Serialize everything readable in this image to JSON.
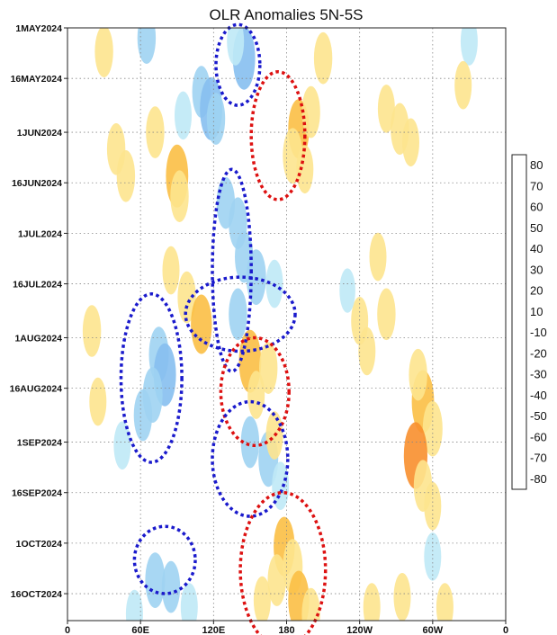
{
  "chart_data": {
    "type": "heatmap",
    "title": "OLR Anomalies 5N-5S",
    "xlabel": "",
    "ylabel": "",
    "x_ticks": [
      {
        "lon": 0,
        "label": "0"
      },
      {
        "lon": 60,
        "label": "60E"
      },
      {
        "lon": 120,
        "label": "120E"
      },
      {
        "lon": 180,
        "label": "180"
      },
      {
        "lon": 240,
        "label": "120W"
      },
      {
        "lon": 300,
        "label": "60W"
      },
      {
        "lon": 360,
        "label": "0"
      }
    ],
    "xlim": [
      0,
      360
    ],
    "time_range": [
      "2024-05-01",
      "2024-10-24"
    ],
    "y_ticks": [
      {
        "date": "2024-05-01",
        "label": "1MAY2024"
      },
      {
        "date": "2024-05-16",
        "label": "16MAY2024"
      },
      {
        "date": "2024-06-01",
        "label": "1JUN2024"
      },
      {
        "date": "2024-06-16",
        "label": "16JUN2024"
      },
      {
        "date": "2024-07-01",
        "label": "1JUL2024"
      },
      {
        "date": "2024-07-16",
        "label": "16JUL2024"
      },
      {
        "date": "2024-08-01",
        "label": "1AUG2024"
      },
      {
        "date": "2024-08-16",
        "label": "16AUG2024"
      },
      {
        "date": "2024-09-01",
        "label": "1SEP2024"
      },
      {
        "date": "2024-09-16",
        "label": "16SEP2024"
      },
      {
        "date": "2024-10-01",
        "label": "1OCT2024"
      },
      {
        "date": "2024-10-16",
        "label": "16OCT2024"
      }
    ],
    "grid": true,
    "colorbar": {
      "levels": [
        {
          "label": "80",
          "color": "#a50f15"
        },
        {
          "label": "70",
          "color": "#c8161d"
        },
        {
          "label": "60",
          "color": "#e3261d"
        },
        {
          "label": "50",
          "color": "#f4592a"
        },
        {
          "label": "40",
          "color": "#f88f2e"
        },
        {
          "label": "30",
          "color": "#fbbf45"
        },
        {
          "label": "20",
          "color": "#fde48e"
        },
        {
          "label": "10",
          "color": "#ffffff"
        },
        {
          "label": "-10",
          "color": "#bfe9f6"
        },
        {
          "label": "-20",
          "color": "#9fd3f2"
        },
        {
          "label": "-30",
          "color": "#86bff0"
        },
        {
          "label": "-40",
          "color": "#69a6ea"
        },
        {
          "label": "-50",
          "color": "#4f8ee6"
        },
        {
          "label": "-60",
          "color": "#3b78df"
        },
        {
          "label": "-70",
          "color": "#2b63d7"
        },
        {
          "label": "-80",
          "color": "#1c4fcf"
        }
      ]
    },
    "anomaly_blobs": [
      {
        "lon": 145,
        "date": "2024-05-10",
        "value": -35
      },
      {
        "lon": 138,
        "date": "2024-05-05",
        "value": -15
      },
      {
        "lon": 65,
        "date": "2024-05-04",
        "value": -20
      },
      {
        "lon": 30,
        "date": "2024-05-08",
        "value": 20
      },
      {
        "lon": 110,
        "date": "2024-05-20",
        "value": -20
      },
      {
        "lon": 118,
        "date": "2024-05-25",
        "value": -35
      },
      {
        "lon": 122,
        "date": "2024-05-28",
        "value": -20
      },
      {
        "lon": 95,
        "date": "2024-05-27",
        "value": -15
      },
      {
        "lon": 210,
        "date": "2024-05-10",
        "value": 20
      },
      {
        "lon": 190,
        "date": "2024-05-31",
        "value": 30
      },
      {
        "lon": 200,
        "date": "2024-05-26",
        "value": 20
      },
      {
        "lon": 185,
        "date": "2024-06-08",
        "value": 25
      },
      {
        "lon": 195,
        "date": "2024-06-12",
        "value": 15
      },
      {
        "lon": 262,
        "date": "2024-05-25",
        "value": 15
      },
      {
        "lon": 273,
        "date": "2024-05-31",
        "value": 20
      },
      {
        "lon": 282,
        "date": "2024-06-04",
        "value": 15
      },
      {
        "lon": 40,
        "date": "2024-06-06",
        "value": 20
      },
      {
        "lon": 48,
        "date": "2024-06-14",
        "value": 20
      },
      {
        "lon": 72,
        "date": "2024-06-01",
        "value": 20
      },
      {
        "lon": 90,
        "date": "2024-06-14",
        "value": 35
      },
      {
        "lon": 92,
        "date": "2024-06-20",
        "value": 20
      },
      {
        "lon": 85,
        "date": "2024-07-12",
        "value": 15
      },
      {
        "lon": 98,
        "date": "2024-07-20",
        "value": 20
      },
      {
        "lon": 110,
        "date": "2024-07-28",
        "value": 30
      },
      {
        "lon": 130,
        "date": "2024-06-22",
        "value": -20
      },
      {
        "lon": 140,
        "date": "2024-06-28",
        "value": -20
      },
      {
        "lon": 145,
        "date": "2024-07-08",
        "value": -20
      },
      {
        "lon": 155,
        "date": "2024-07-14",
        "value": -25
      },
      {
        "lon": 170,
        "date": "2024-07-16",
        "value": -15
      },
      {
        "lon": 140,
        "date": "2024-07-25",
        "value": -20
      },
      {
        "lon": 75,
        "date": "2024-08-06",
        "value": -25
      },
      {
        "lon": 80,
        "date": "2024-08-12",
        "value": -35
      },
      {
        "lon": 70,
        "date": "2024-08-18",
        "value": -25
      },
      {
        "lon": 62,
        "date": "2024-08-24",
        "value": -20
      },
      {
        "lon": 150,
        "date": "2024-08-08",
        "value": 35
      },
      {
        "lon": 165,
        "date": "2024-08-10",
        "value": 20
      },
      {
        "lon": 155,
        "date": "2024-08-18",
        "value": 15
      },
      {
        "lon": 20,
        "date": "2024-07-30",
        "value": 20
      },
      {
        "lon": 25,
        "date": "2024-08-20",
        "value": 15
      },
      {
        "lon": 45,
        "date": "2024-09-02",
        "value": -15
      },
      {
        "lon": 150,
        "date": "2024-09-01",
        "value": -20
      },
      {
        "lon": 165,
        "date": "2024-09-06",
        "value": -25
      },
      {
        "lon": 175,
        "date": "2024-09-14",
        "value": -15
      },
      {
        "lon": 170,
        "date": "2024-08-30",
        "value": 15
      },
      {
        "lon": 292,
        "date": "2024-08-20",
        "value": 35
      },
      {
        "lon": 288,
        "date": "2024-08-12",
        "value": 20
      },
      {
        "lon": 300,
        "date": "2024-08-28",
        "value": 25
      },
      {
        "lon": 286,
        "date": "2024-09-05",
        "value": 40
      },
      {
        "lon": 292,
        "date": "2024-09-14",
        "value": 20
      },
      {
        "lon": 300,
        "date": "2024-09-20",
        "value": 15
      },
      {
        "lon": 240,
        "date": "2024-07-27",
        "value": 15
      },
      {
        "lon": 262,
        "date": "2024-07-25",
        "value": 20
      },
      {
        "lon": 246,
        "date": "2024-08-05",
        "value": 15
      },
      {
        "lon": 255,
        "date": "2024-07-08",
        "value": 15
      },
      {
        "lon": 178,
        "date": "2024-10-02",
        "value": 30
      },
      {
        "lon": 185,
        "date": "2024-10-08",
        "value": 25
      },
      {
        "lon": 172,
        "date": "2024-10-12",
        "value": 20
      },
      {
        "lon": 190,
        "date": "2024-10-18",
        "value": 30
      },
      {
        "lon": 160,
        "date": "2024-10-18",
        "value": 15
      },
      {
        "lon": 200,
        "date": "2024-10-22",
        "value": 20
      },
      {
        "lon": 72,
        "date": "2024-10-12",
        "value": -25
      },
      {
        "lon": 85,
        "date": "2024-10-14",
        "value": -20
      },
      {
        "lon": 100,
        "date": "2024-10-20",
        "value": -15
      },
      {
        "lon": 55,
        "date": "2024-10-22",
        "value": -15
      },
      {
        "lon": 250,
        "date": "2024-10-20",
        "value": 15
      },
      {
        "lon": 275,
        "date": "2024-10-17",
        "value": 15
      },
      {
        "lon": 310,
        "date": "2024-10-20",
        "value": 15
      },
      {
        "lon": 300,
        "date": "2024-10-05",
        "value": -15
      },
      {
        "lon": 330,
        "date": "2024-05-05",
        "value": -15
      },
      {
        "lon": 325,
        "date": "2024-05-18",
        "value": 15
      },
      {
        "lon": 230,
        "date": "2024-07-18",
        "value": -10
      }
    ],
    "annotations": [
      {
        "shape": "ellipse",
        "color": "#1a1acc",
        "lon": 140,
        "date": "2024-05-12",
        "lon_radius": 18,
        "day_radius": 12
      },
      {
        "shape": "ellipse",
        "color": "#dd1111",
        "lon": 173,
        "date": "2024-06-02",
        "lon_radius": 22,
        "day_radius": 19
      },
      {
        "shape": "ellipse",
        "color": "#1a1acc",
        "lon": 135,
        "date": "2024-07-12",
        "lon_radius": 16,
        "day_radius": 30
      },
      {
        "shape": "ellipse",
        "color": "#1a1acc",
        "lon": 142,
        "date": "2024-07-25",
        "lon_radius": 45,
        "day_radius": 11
      },
      {
        "shape": "ellipse",
        "color": "#1a1acc",
        "lon": 69,
        "date": "2024-08-13",
        "lon_radius": 25,
        "day_radius": 25
      },
      {
        "shape": "ellipse",
        "color": "#dd1111",
        "lon": 154,
        "date": "2024-08-17",
        "lon_radius": 28,
        "day_radius": 16
      },
      {
        "shape": "ellipse",
        "color": "#1a1acc",
        "lon": 150,
        "date": "2024-09-06",
        "lon_radius": 31,
        "day_radius": 17
      },
      {
        "shape": "ellipse",
        "color": "#dd1111",
        "lon": 177,
        "date": "2024-10-09",
        "lon_radius": 35,
        "day_radius": 23
      },
      {
        "shape": "ellipse",
        "color": "#1a1acc",
        "lon": 80,
        "date": "2024-10-06",
        "lon_radius": 25,
        "day_radius": 10
      }
    ]
  }
}
